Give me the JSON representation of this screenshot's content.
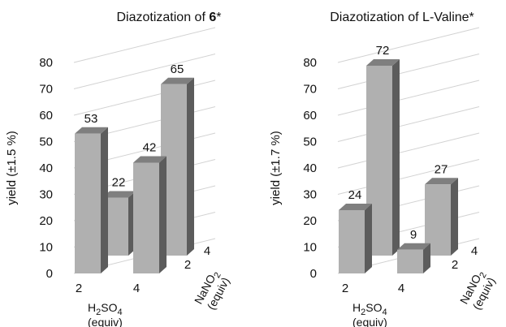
{
  "chart_data": [
    {
      "type": "bar",
      "title": "Diazotization of ",
      "title_bold": "6",
      "title_suffix": "*",
      "ylabel": "yield (±1.5 %)",
      "ylim": [
        0,
        80
      ],
      "yticks": [
        "0",
        "10",
        "20",
        "30",
        "40",
        "50",
        "60",
        "70",
        "80"
      ],
      "xlabel": {
        "main": "H",
        "sub1": "2",
        "mid": "SO",
        "sub2": "4",
        "line2": "(equiv)"
      },
      "zlabel": {
        "main": "NaNO",
        "sub": "2",
        "line2": "(equiv)"
      },
      "h2so4_values": [
        "2",
        "4"
      ],
      "nano2_values": [
        "2",
        "4"
      ],
      "grid": true,
      "bar_color": "#b0b0b0",
      "bars": [
        {
          "h2so4": "2",
          "nano2": "2",
          "value": 53,
          "label": "53"
        },
        {
          "h2so4": "2",
          "nano2": "4",
          "value": 22,
          "label": "22"
        },
        {
          "h2so4": "4",
          "nano2": "2",
          "value": 42,
          "label": "42"
        },
        {
          "h2so4": "4",
          "nano2": "4",
          "value": 65,
          "label": "65"
        }
      ]
    },
    {
      "type": "bar",
      "title": "Diazotization of L-Valine*",
      "ylabel": "yield (±1.7 %)",
      "ylim": [
        0,
        80
      ],
      "yticks": [
        "0",
        "10",
        "20",
        "30",
        "40",
        "50",
        "60",
        "70",
        "80"
      ],
      "xlabel": {
        "main": "H",
        "sub1": "2",
        "mid": "SO",
        "sub2": "4",
        "line2": "(equiv)"
      },
      "zlabel": {
        "main": "NaNO",
        "sub": "2",
        "line2": "(equiv)"
      },
      "h2so4_values": [
        "2",
        "4"
      ],
      "nano2_values": [
        "2",
        "4"
      ],
      "grid": true,
      "bar_color": "#b0b0b0",
      "bars": [
        {
          "h2so4": "2",
          "nano2": "2",
          "value": 24,
          "label": "24"
        },
        {
          "h2so4": "2",
          "nano2": "4",
          "value": 72,
          "label": "72"
        },
        {
          "h2so4": "4",
          "nano2": "2",
          "value": 9,
          "label": "9"
        },
        {
          "h2so4": "4",
          "nano2": "4",
          "value": 27,
          "label": "27"
        }
      ]
    }
  ]
}
